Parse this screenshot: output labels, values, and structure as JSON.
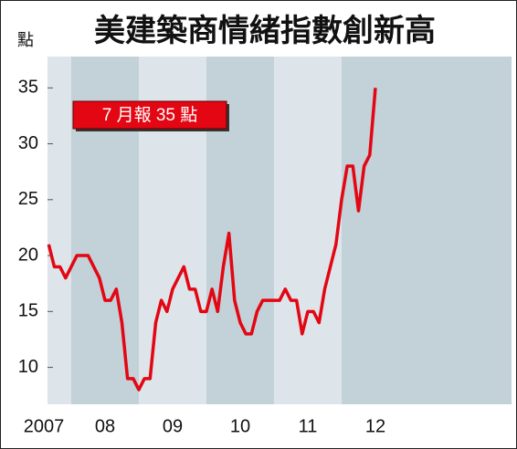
{
  "chart_data": {
    "type": "line",
    "title": "美建築商情緒指數創新高",
    "y_label": "點",
    "annotation": "7 月報 35 點",
    "categories": [
      "2007",
      null,
      null,
      null,
      null,
      null,
      null,
      null,
      null,
      null,
      "08",
      null,
      null,
      null,
      null,
      null,
      null,
      null,
      null,
      null,
      null,
      null,
      "09",
      null,
      null,
      null,
      null,
      null,
      null,
      null,
      null,
      null,
      null,
      null,
      "10",
      null,
      null,
      null,
      null,
      null,
      null,
      null,
      null,
      null,
      null,
      null,
      "11",
      null,
      null,
      null,
      null,
      null,
      null,
      null,
      null,
      null,
      null,
      null,
      "12"
    ],
    "series": [
      {
        "name": "美建築商情緒指數",
        "color": "#e30613",
        "values": [
          21,
          19,
          19,
          18,
          19,
          20,
          20,
          20,
          19,
          18,
          16,
          16,
          17,
          14,
          9,
          9,
          8,
          9,
          9,
          14,
          16,
          15,
          17,
          18,
          19,
          17,
          17,
          15,
          15,
          17,
          15,
          19,
          22,
          16,
          14,
          13,
          13,
          15,
          16,
          16,
          16,
          16,
          17,
          16,
          16,
          13,
          15,
          15,
          14,
          17,
          19,
          21,
          25,
          28,
          28,
          24,
          28,
          29,
          35
        ]
      }
    ],
    "ylim": [
      6.7,
      37.8
    ],
    "yticks": [
      10,
      15,
      20,
      25,
      30,
      35
    ],
    "grid": false,
    "band_colors": [
      "#dde5ea",
      "#c3d1d8"
    ]
  }
}
